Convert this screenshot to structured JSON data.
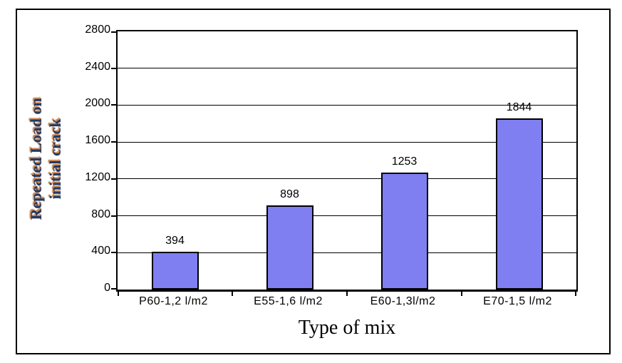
{
  "chart_data": {
    "type": "bar",
    "categories": [
      "P60-1,2 l/m2",
      "E55-1,6 l/m2",
      "E60-1,3l/m2",
      "E70-1,5 l/m2"
    ],
    "values": [
      394,
      898,
      1253,
      1844
    ],
    "value_labels": [
      "394",
      "898",
      "1253",
      "1844"
    ],
    "xlabel": "Type of mix",
    "ylabel": "Repeated Load on initial crack",
    "ylabel_lines": [
      "Repeated Load on",
      "initial crack"
    ],
    "ylim": [
      0,
      2800
    ],
    "yticks": [
      0,
      400,
      800,
      1200,
      1600,
      2000,
      2400,
      2800
    ],
    "grid": true,
    "legend": false,
    "colors": {
      "bar_fill": "#7f7ff2",
      "bar_border": "#000000",
      "grid": "#000000",
      "ylabel_text": "#223a66",
      "ylabel_shadow": "#c9854f"
    }
  }
}
